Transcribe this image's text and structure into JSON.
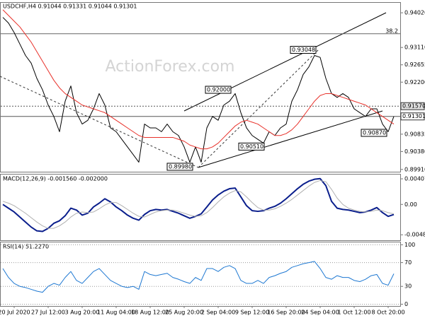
{
  "chart_data": [
    {
      "type": "line",
      "title": "USDCHF,H4  0.91044 0.91331 0.91044 0.91301",
      "watermark": "ActionForex.com",
      "ylim": [
        0.8985,
        0.943
      ],
      "yticks": [
        {
          "value": 0.9402,
          "label": "0.94020"
        },
        {
          "value": 0.9311,
          "label": "0.93110"
        },
        0.92655,
        {
          "value": 0.922,
          "label": "0.92200"
        },
        0.90835,
        {
          "value": 0.9038,
          "label": "0.90380"
        },
        {
          "value": 0.8991,
          "label": "0.89910"
        }
      ],
      "series": [
        {
          "color": "#000000",
          "values": [
            0.939,
            0.9375,
            0.935,
            0.932,
            0.929,
            0.927,
            0.923,
            0.92,
            0.916,
            0.913,
            0.909,
            0.917,
            0.921,
            0.914,
            0.911,
            0.912,
            0.915,
            0.919,
            0.916,
            0.91,
            0.909,
            0.907,
            0.905,
            0.903,
            0.901,
            0.911,
            0.91,
            0.91,
            0.909,
            0.911,
            0.909,
            0.908,
            0.905,
            0.901,
            0.905,
            0.901,
            0.91,
            0.913,
            0.912,
            0.916,
            0.917,
            0.919,
            0.914,
            0.91,
            0.908,
            0.907,
            0.906,
            0.909,
            0.908,
            0.91,
            0.911,
            0.917,
            0.92,
            0.924,
            0.926,
            0.929,
            0.9285,
            0.923,
            0.919,
            0.918,
            0.919,
            0.918,
            0.915,
            0.914,
            0.913,
            0.915,
            0.915,
            0.911,
            0.909,
            0.913
          ]
        },
        {
          "color": "#e8312a",
          "values": [
            0.941,
            0.9395,
            0.938,
            0.9365,
            0.9345,
            0.9325,
            0.93,
            0.9275,
            0.925,
            0.9225,
            0.9205,
            0.919,
            0.918,
            0.917,
            0.916,
            0.9155,
            0.915,
            0.9145,
            0.914,
            0.913,
            0.912,
            0.911,
            0.91,
            0.909,
            0.908,
            0.9075,
            0.9075,
            0.9075,
            0.9075,
            0.9075,
            0.9075,
            0.907,
            0.9065,
            0.9055,
            0.905,
            0.9045,
            0.9045,
            0.905,
            0.906,
            0.9075,
            0.909,
            0.9105,
            0.9115,
            0.912,
            0.9115,
            0.911,
            0.91,
            0.909,
            0.908,
            0.908,
            0.9085,
            0.9095,
            0.911,
            0.913,
            0.915,
            0.917,
            0.9185,
            0.919,
            0.919,
            0.9185,
            0.918,
            0.9175,
            0.917,
            0.9165,
            0.916,
            0.915,
            0.914,
            0.913,
            0.912,
            0.911
          ]
        }
      ],
      "fib_level": 0.9347,
      "fib_label": "38.2",
      "levels": [
        {
          "value": 0.9157,
          "label": "0.91570"
        },
        0.91301
      ],
      "annotations": [
        0.93048,
        {
          "value": 0.92,
          "label": "0.92000"
        },
        {
          "value": 0.9051,
          "label": "0.90510"
        },
        {
          "value": 0.9087,
          "label": "0.90870"
        },
        {
          "value": 0.8998,
          "label": "0.89980"
        }
      ]
    },
    {
      "type": "line",
      "title": "MACD(12,26,9) -0.001560 -0.002000",
      "ylim": [
        -0.0057,
        0.00475
      ],
      "yticks": [
        0.004071,
        {
          "value": 0,
          "label": "0.00"
        },
        -0.004829
      ],
      "series": [
        {
          "color": "#0a1e8c",
          "width": 2,
          "values": [
            0.0,
            -0.0006,
            -0.0012,
            -0.002,
            -0.0028,
            -0.0036,
            -0.0042,
            -0.0043,
            -0.0038,
            -0.003,
            -0.0026,
            -0.0018,
            -0.0006,
            -0.0009,
            -0.0017,
            -0.0014,
            -0.0004,
            0.0002,
            0.0009,
            0.0004,
            -0.0004,
            -0.001,
            -0.0017,
            -0.0022,
            -0.0025,
            -0.0016,
            -0.001,
            -0.0008,
            -0.0009,
            -0.0008,
            -0.0011,
            -0.0014,
            -0.0018,
            -0.0022,
            -0.0019,
            -0.0015,
            -0.0004,
            0.0007,
            0.0015,
            0.0021,
            0.0025,
            0.0026,
            0.0012,
            -0.0002,
            -0.001,
            -0.0011,
            -0.001,
            -0.0006,
            -0.0003,
            0.0002,
            0.0009,
            0.0017,
            0.0025,
            0.0032,
            0.0037,
            0.004,
            0.0041,
            0.003,
            0.0005,
            -0.0006,
            -0.0008,
            -0.0009,
            -0.0011,
            -0.0013,
            -0.0012,
            -0.0009,
            -0.0005,
            -0.0013,
            -0.0019,
            -0.0016
          ]
        },
        {
          "color": "#b0b0b0",
          "width": 1,
          "values": [
            0.0005,
            0.0002,
            -0.0002,
            -0.0008,
            -0.0014,
            -0.0021,
            -0.0028,
            -0.0034,
            -0.0038,
            -0.0038,
            -0.0034,
            -0.0028,
            -0.002,
            -0.0014,
            -0.0012,
            -0.0013,
            -0.0012,
            -0.0007,
            -0.0001,
            0.0003,
            0.0003,
            -0.0002,
            -0.0008,
            -0.0014,
            -0.0019,
            -0.002,
            -0.0016,
            -0.0012,
            -0.001,
            -0.0009,
            -0.0009,
            -0.0011,
            -0.0014,
            -0.0017,
            -0.0019,
            -0.0018,
            -0.0013,
            -0.0005,
            0.0004,
            0.0012,
            0.0018,
            0.0022,
            0.002,
            0.0012,
            0.0003,
            -0.0005,
            -0.0009,
            -0.0009,
            -0.0007,
            -0.0003,
            0.0002,
            0.0008,
            0.0015,
            0.0022,
            0.0029,
            0.0035,
            0.0038,
            0.0036,
            0.0024,
            0.001,
            0.0,
            -0.0006,
            -0.0009,
            -0.0011,
            -0.0012,
            -0.0011,
            -0.0009,
            -0.001,
            -0.0013,
            -0.0015
          ]
        }
      ]
    },
    {
      "type": "line",
      "title": "RSI(14) 51.2270",
      "ylim": [
        -3,
        104
      ],
      "yticks": [
        100,
        70,
        30,
        0
      ],
      "grid": true,
      "categories": [
        null,
        null,
        "20 Jul 2020",
        null,
        null,
        null,
        null,
        null,
        "27 Jul 12:00",
        null,
        null,
        null,
        null,
        null,
        "3 Aug 20:00",
        null,
        null,
        null,
        null,
        null,
        "11 Aug 04:00",
        null,
        null,
        null,
        null,
        null,
        "18 Aug 12:00",
        null,
        null,
        null,
        null,
        null,
        "25 Aug 20:00",
        null,
        null,
        null,
        null,
        null,
        "2 Sep 04:00",
        null,
        null,
        null,
        null,
        null,
        "9 Sep 12:00",
        null,
        null,
        null,
        null,
        null,
        "16 Sep 20:00",
        null,
        null,
        null,
        null,
        null,
        "24 Sep 04:00",
        null,
        null,
        null,
        null,
        null,
        "1 Oct 12:00",
        null,
        null,
        null,
        null,
        null,
        "8 Oct 20:00",
        null
      ],
      "series": [
        {
          "color": "#1e78d2",
          "width": 1,
          "values": [
            60,
            45,
            35,
            30,
            28,
            25,
            22,
            20,
            30,
            35,
            32,
            45,
            55,
            40,
            35,
            45,
            55,
            60,
            50,
            40,
            35,
            30,
            28,
            30,
            25,
            55,
            50,
            48,
            50,
            52,
            45,
            42,
            38,
            35,
            45,
            40,
            60,
            60,
            55,
            62,
            65,
            60,
            40,
            35,
            35,
            40,
            35,
            45,
            48,
            52,
            55,
            62,
            65,
            68,
            70,
            72,
            60,
            45,
            42,
            48,
            45,
            45,
            40,
            38,
            42,
            48,
            50,
            35,
            32,
            51.227
          ]
        }
      ]
    }
  ]
}
